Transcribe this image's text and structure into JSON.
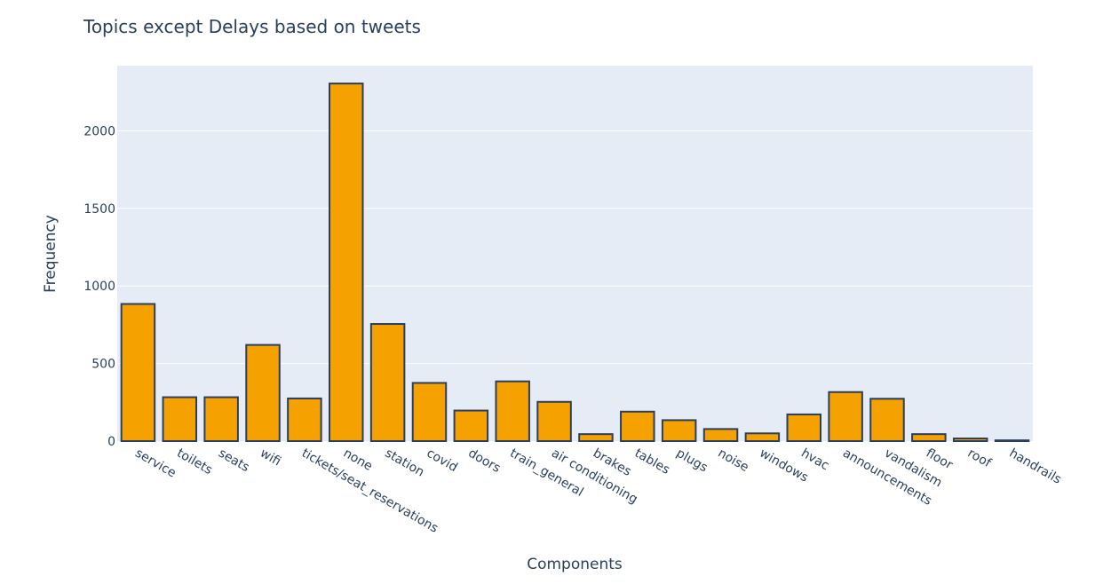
{
  "colors": {
    "plot_background": "#E5ECF6",
    "bar_fill": "#F5A100",
    "bar_outline": "#2a3f5f",
    "grid": "#ffffff",
    "text": "#2a3f5f"
  },
  "chart_data": {
    "type": "bar",
    "title": "Topics except Delays based on tweets",
    "xlabel": "Components",
    "ylabel": "Frequency",
    "ylim": [
      0,
      2420
    ],
    "yticks": [
      0,
      500,
      1000,
      1500,
      2000
    ],
    "grid": true,
    "categories": [
      "service",
      "toilets",
      "seats",
      "wifi",
      "tickets/seat_reservations",
      "none",
      "station",
      "covid",
      "doors",
      "train_general",
      "air conditioning",
      "brakes",
      "tables",
      "plugs",
      "noise",
      "windows",
      "hvac",
      "announcements",
      "vandalism",
      "floor",
      "roof",
      "handrails"
    ],
    "values": [
      884,
      283,
      283,
      620,
      275,
      2305,
      755,
      375,
      197,
      385,
      253,
      45,
      190,
      135,
      78,
      50,
      172,
      316,
      273,
      45,
      17,
      5
    ]
  }
}
